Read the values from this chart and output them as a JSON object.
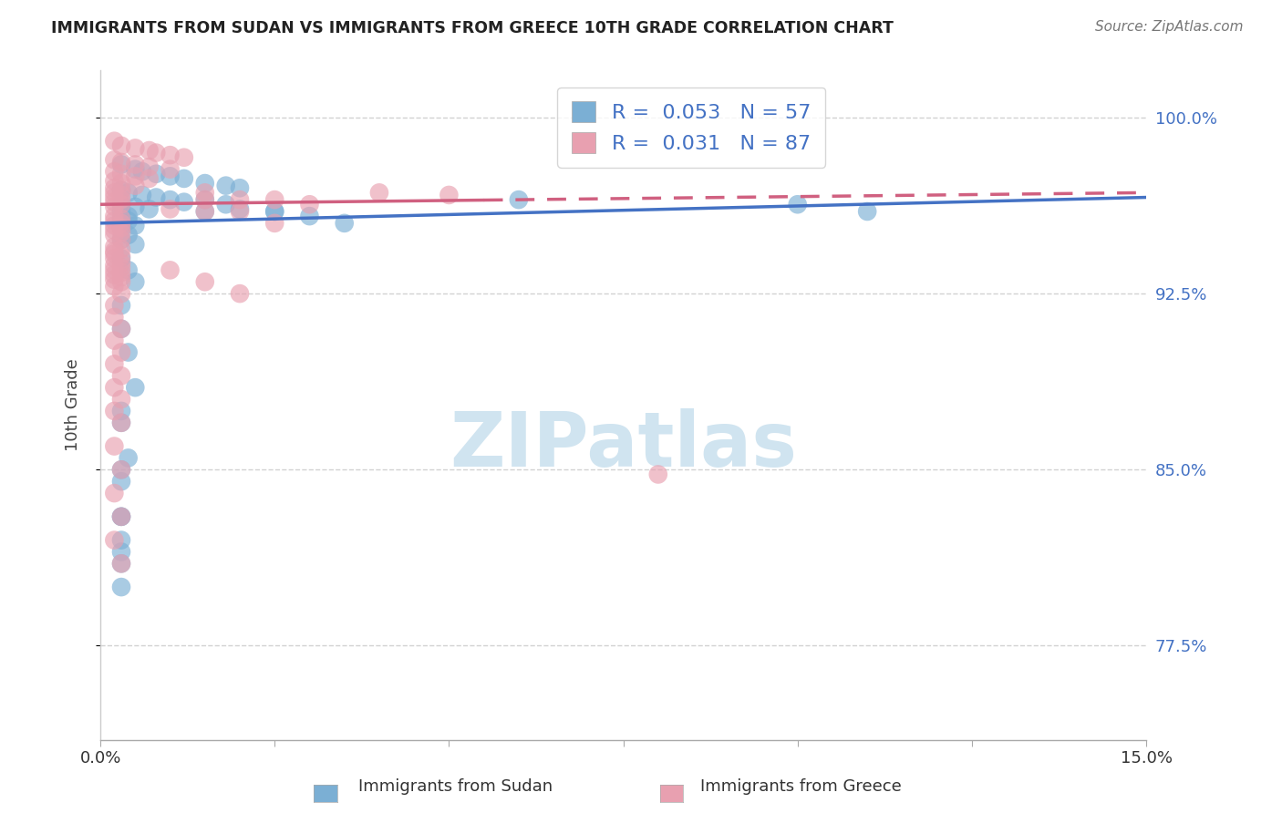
{
  "title": "IMMIGRANTS FROM SUDAN VS IMMIGRANTS FROM GREECE 10TH GRADE CORRELATION CHART",
  "source": "Source: ZipAtlas.com",
  "ylabel": "10th Grade",
  "ytick_labels": [
    "100.0%",
    "92.5%",
    "85.0%",
    "77.5%"
  ],
  "ytick_values": [
    1.0,
    0.925,
    0.85,
    0.775
  ],
  "xmin": 0.0,
  "xmax": 0.15,
  "ymin": 0.735,
  "ymax": 1.02,
  "sudan_R": 0.053,
  "sudan_N": 57,
  "greece_R": 0.031,
  "greece_N": 87,
  "sudan_color": "#7bafd4",
  "greece_color": "#e8a0b0",
  "sudan_line_color": "#4472c4",
  "greece_line_color": "#d06080",
  "watermark_color": "#d0e4f0",
  "title_color": "#222222",
  "right_axis_color": "#4472c4",
  "grid_color": "#cccccc",
  "sudan_points_x": [
    0.003,
    0.005,
    0.006,
    0.008,
    0.01,
    0.012,
    0.015,
    0.018,
    0.02,
    0.003,
    0.004,
    0.006,
    0.008,
    0.01,
    0.012,
    0.003,
    0.005,
    0.007,
    0.003,
    0.004,
    0.003,
    0.004,
    0.003,
    0.005,
    0.003,
    0.004,
    0.015,
    0.018,
    0.02,
    0.025,
    0.003,
    0.005,
    0.06,
    0.1,
    0.11,
    0.003,
    0.004,
    0.005,
    0.003,
    0.003,
    0.004,
    0.005,
    0.003,
    0.004,
    0.015,
    0.003,
    0.003,
    0.025,
    0.03,
    0.035,
    0.003,
    0.003,
    0.003,
    0.003,
    0.003,
    0.003,
    0.003
  ],
  "sudan_points_y": [
    0.98,
    0.978,
    0.977,
    0.976,
    0.975,
    0.974,
    0.972,
    0.971,
    0.97,
    0.969,
    0.968,
    0.967,
    0.966,
    0.965,
    0.964,
    0.963,
    0.962,
    0.961,
    0.96,
    0.958,
    0.957,
    0.956,
    0.955,
    0.954,
    0.953,
    0.95,
    0.965,
    0.963,
    0.961,
    0.96,
    0.948,
    0.946,
    0.965,
    0.963,
    0.96,
    0.94,
    0.935,
    0.93,
    0.92,
    0.91,
    0.9,
    0.885,
    0.87,
    0.855,
    0.96,
    0.875,
    0.85,
    0.96,
    0.958,
    0.955,
    0.845,
    0.83,
    0.815,
    0.8,
    0.83,
    0.82,
    0.81
  ],
  "greece_points_x": [
    0.002,
    0.003,
    0.005,
    0.007,
    0.008,
    0.01,
    0.012,
    0.002,
    0.003,
    0.005,
    0.007,
    0.01,
    0.002,
    0.003,
    0.005,
    0.007,
    0.002,
    0.003,
    0.005,
    0.002,
    0.003,
    0.002,
    0.003,
    0.002,
    0.003,
    0.002,
    0.003,
    0.002,
    0.01,
    0.015,
    0.002,
    0.003,
    0.002,
    0.003,
    0.002,
    0.003,
    0.015,
    0.02,
    0.025,
    0.002,
    0.003,
    0.002,
    0.003,
    0.015,
    0.02,
    0.002,
    0.003,
    0.002,
    0.025,
    0.03,
    0.002,
    0.003,
    0.002,
    0.003,
    0.04,
    0.05,
    0.002,
    0.003,
    0.002,
    0.003,
    0.002,
    0.003,
    0.002,
    0.003,
    0.002,
    0.003,
    0.002,
    0.01,
    0.015,
    0.02,
    0.002,
    0.003,
    0.002,
    0.003,
    0.002,
    0.003,
    0.002,
    0.003,
    0.002,
    0.003,
    0.002,
    0.003,
    0.002,
    0.003,
    0.002,
    0.003,
    0.08
  ],
  "greece_points_y": [
    0.99,
    0.988,
    0.987,
    0.986,
    0.985,
    0.984,
    0.983,
    0.982,
    0.981,
    0.98,
    0.979,
    0.978,
    0.977,
    0.976,
    0.975,
    0.974,
    0.973,
    0.972,
    0.971,
    0.97,
    0.969,
    0.968,
    0.967,
    0.966,
    0.965,
    0.964,
    0.963,
    0.962,
    0.961,
    0.96,
    0.958,
    0.957,
    0.956,
    0.955,
    0.954,
    0.953,
    0.965,
    0.96,
    0.955,
    0.952,
    0.951,
    0.95,
    0.948,
    0.968,
    0.965,
    0.945,
    0.944,
    0.943,
    0.965,
    0.963,
    0.942,
    0.941,
    0.94,
    0.938,
    0.968,
    0.967,
    0.937,
    0.936,
    0.935,
    0.934,
    0.933,
    0.932,
    0.931,
    0.93,
    0.928,
    0.925,
    0.92,
    0.935,
    0.93,
    0.925,
    0.915,
    0.91,
    0.905,
    0.9,
    0.895,
    0.89,
    0.885,
    0.88,
    0.875,
    0.87,
    0.86,
    0.85,
    0.84,
    0.83,
    0.82,
    0.81,
    0.848
  ]
}
